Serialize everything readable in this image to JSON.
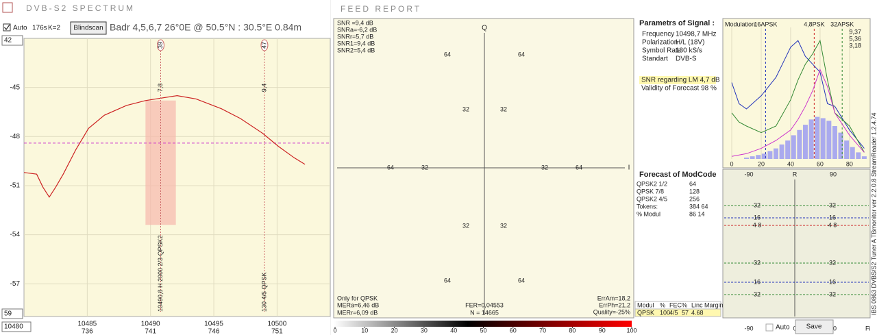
{
  "left": {
    "title": "DVB-S2  SPECTRUM",
    "auto": "Auto",
    "rate": "176s",
    "k": "K=2",
    "blindscan": "Blindscan",
    "info": "Badr 4,5,6,7    26°0E  @  50.5°N : 30.5°E    0.84m",
    "spin_top": "42",
    "spin_bottom": "59",
    "spin_left": "10480"
  },
  "spectrum": {
    "type": "line",
    "color": "#cc2222",
    "x": [
      10480,
      10481,
      10481.5,
      10482,
      10482.5,
      10483.1,
      10484.1,
      10485.1,
      10486.35,
      10488.1,
      10489.6,
      10492.1,
      10493.6,
      10495.6,
      10497.1,
      10498.85,
      10500.1,
      10501.35,
      10502.2
    ],
    "values": [
      -50.2,
      -50.3,
      -51.1,
      -51.7,
      -51.1,
      -50.3,
      -48.8,
      -47.5,
      -46.7,
      -46.1,
      -45.8,
      -45.5,
      -45.7,
      -46.3,
      -46.9,
      -47.8,
      -48.6,
      -49.3,
      -49.7
    ],
    "xlim": [
      10480,
      10504.2
    ],
    "ylim": [
      -59,
      -42
    ],
    "xticks": [
      10485,
      10490,
      10495,
      10500
    ],
    "channels": [
      736,
      741,
      746,
      751
    ],
    "yticks": [
      -45,
      -48,
      -51,
      -54,
      -57
    ],
    "threshold": -48.4,
    "carrier": {
      "start": 10489.6,
      "end": 10492,
      "top": -45.8,
      "floor": -53.4
    },
    "markers": [
      {
        "label": "39",
        "x": 10490.8,
        "level": "7,8",
        "text": "10490,8 H    2000 2/3    QPSK2"
      },
      {
        "label": "47",
        "x": 10499,
        "level": "9,4",
        "text": "130 4/5  QPSK"
      }
    ]
  },
  "feed": {
    "title": "FEED  REPORT",
    "snr": [
      "SNR =9,4 dB",
      "SNRa=-6,2 dB",
      "SNRr=5,7 dB",
      "SNR1=9,4 dB",
      "SNR2=5,4 dB"
    ],
    "snr_colors": [
      "#999999",
      "#999999",
      "#999999",
      "#cc33cc",
      "#339933"
    ],
    "q": "Q",
    "i": "I",
    "ring_outer": "64",
    "ring_inner": "32",
    "only": "Only for QPSK",
    "mer": [
      "MERa=6,46 dB",
      "MERr=6,09 dB"
    ],
    "fer": [
      "FER=0,04553",
      "N = 14665"
    ],
    "err": [
      "ErrAm=18,2",
      "ErrPh=21,2",
      "Quality=-25%"
    ],
    "scale_ticks": [
      0,
      10,
      20,
      30,
      40,
      50,
      60,
      70,
      80,
      90,
      100
    ]
  },
  "params": {
    "title": "Parametrs of Signal :",
    "rows": [
      [
        "Frequency",
        "10498,7 MHz"
      ],
      [
        "Polarization",
        "H/L (18V)"
      ],
      [
        "Symbol Rate",
        "130 kS/s"
      ],
      [
        "Standart",
        "DVB-S"
      ]
    ],
    "snr_lm": "SNR regarding LM  4,7 dB",
    "validity": "Validity of Forecast  98 %"
  },
  "forecast": {
    "title": "Forecast of ModCode",
    "rows": [
      [
        "QPSK2 1/2",
        "64"
      ],
      [
        "QPSK 7/8",
        "128"
      ],
      [
        "QPSK2 4/5",
        "256"
      ],
      [
        "Tokens:",
        "384 64"
      ],
      [
        "% Modul",
        "86  14"
      ]
    ]
  },
  "table": {
    "header": [
      "Modul",
      "%",
      "FEC",
      "%",
      "Linc Margin"
    ],
    "row": [
      "QPSK",
      "100",
      "4/5",
      "57",
      "4.68"
    ]
  },
  "modulation": {
    "label": "Modulation:",
    "xlim": [
      0,
      94
    ],
    "ylim": [
      0,
      100
    ],
    "xticks": [
      0,
      20,
      40,
      60,
      80
    ],
    "x": [
      0,
      5,
      10,
      20,
      30,
      40,
      45,
      50,
      55,
      60,
      65,
      70,
      80,
      90
    ],
    "series": [
      {
        "color": "#2233bb",
        "values": [
          58,
          42,
          38,
          48,
          62,
          85,
          90,
          78,
          72,
          66,
          42,
          40,
          22,
          8
        ]
      },
      {
        "color": "#338833",
        "values": [
          35,
          28,
          25,
          20,
          25,
          45,
          60,
          72,
          80,
          90,
          60,
          35,
          25,
          5
        ]
      },
      {
        "color": "#cc33cc",
        "values": [
          2,
          3,
          4,
          8,
          14,
          22,
          30,
          40,
          52,
          68,
          55,
          35,
          18,
          5
        ]
      }
    ],
    "hist": {
      "color": "#aaaaee",
      "x": [
        2,
        6,
        10,
        14,
        18,
        22,
        26,
        30,
        34,
        38,
        42,
        46,
        50,
        54,
        58,
        62,
        66,
        70,
        74,
        78,
        82,
        86,
        90
      ],
      "values": [
        0,
        0,
        1,
        2,
        3,
        4,
        6,
        8,
        11,
        14,
        18,
        22,
        26,
        30,
        32,
        31,
        29,
        25,
        20,
        14,
        9,
        5,
        2
      ]
    },
    "modes": [
      {
        "label": "16APSK",
        "x": 23,
        "color": "#2233bb"
      },
      {
        "label": "4,8PSK",
        "x": 56,
        "color": "#cc2222"
      },
      {
        "label": "32APSK",
        "x": 75,
        "color": "#338833"
      }
    ],
    "readings": [
      {
        "text": "9,37",
        "color": "#cc33cc"
      },
      {
        "text": "5,36",
        "color": "#338833"
      },
      {
        "text": "3,18",
        "color": "#2233bb"
      }
    ]
  },
  "phase": {
    "top": [
      "-90",
      "R",
      "90"
    ],
    "bottom": [
      "-90",
      "0",
      "90"
    ],
    "fi": "Fi",
    "levels": [
      {
        "label": "32",
        "color": "#338833"
      },
      {
        "label": "16",
        "color": "#2233bb"
      },
      {
        "label": "4  8",
        "color": "#cc2222"
      },
      {
        "label": "32",
        "color": "#338833"
      },
      {
        "label": "16",
        "color": "#2233bb"
      },
      {
        "label": "32",
        "color": "#338833"
      }
    ]
  },
  "side": "IBS 0863 DVBS/S2 Tuner A    TBmonitor  ver 2.2.0.8    StreamReader 1.2.4.74",
  "footer": {
    "auto": "Auto",
    "save": "Save"
  }
}
